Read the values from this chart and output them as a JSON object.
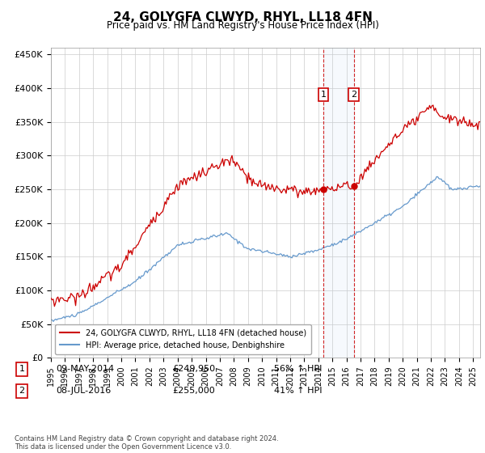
{
  "title": "24, GOLYGFA CLWYD, RHYL, LL18 4FN",
  "subtitle": "Price paid vs. HM Land Registry's House Price Index (HPI)",
  "ylabel_ticks": [
    "£0",
    "£50K",
    "£100K",
    "£150K",
    "£200K",
    "£250K",
    "£300K",
    "£350K",
    "£400K",
    "£450K"
  ],
  "ytick_values": [
    0,
    50000,
    100000,
    150000,
    200000,
    250000,
    300000,
    350000,
    400000,
    450000
  ],
  "ylim": [
    0,
    460000
  ],
  "xlim_start": 1995.0,
  "xlim_end": 2025.5,
  "legend_label_red": "24, GOLYGFA CLWYD, RHYL, LL18 4FN (detached house)",
  "legend_label_blue": "HPI: Average price, detached house, Denbighshire",
  "red_color": "#cc0000",
  "blue_color": "#6699cc",
  "transaction1_date": "09-MAY-2014",
  "transaction1_price": "£249,950",
  "transaction1_hpi": "56% ↑ HPI",
  "transaction1_x": 2014.36,
  "transaction1_y": 249950,
  "transaction2_date": "08-JUL-2016",
  "transaction2_price": "£255,000",
  "transaction2_hpi": "41% ↑ HPI",
  "transaction2_x": 2016.52,
  "transaction2_y": 255000,
  "footer": "Contains HM Land Registry data © Crown copyright and database right 2024.\nThis data is licensed under the Open Government Licence v3.0.",
  "background_color": "#ffffff",
  "grid_color": "#cccccc"
}
